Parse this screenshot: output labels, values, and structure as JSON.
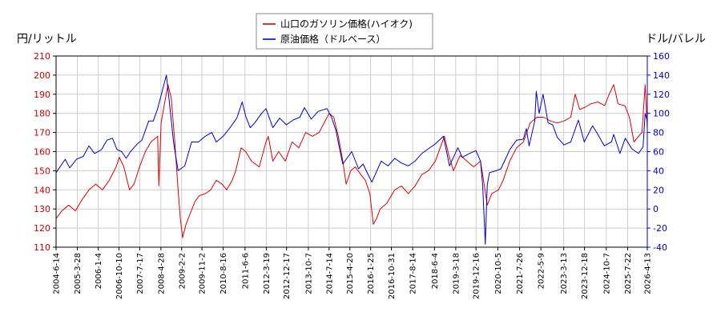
{
  "chart_data": {
    "type": "line",
    "title": "",
    "left_axis_label": "円/リットル",
    "right_axis_label": "ドル/バレル",
    "left_ylim": [
      110,
      210
    ],
    "left_yticks": [
      110,
      120,
      130,
      140,
      150,
      160,
      170,
      180,
      190,
      200,
      210
    ],
    "right_ylim": [
      -40,
      160
    ],
    "right_yticks": [
      -40,
      -20,
      0,
      20,
      40,
      60,
      80,
      100,
      120,
      140,
      160
    ],
    "x_range": [
      "2004-06-14",
      "2026-04-13"
    ],
    "x_ticks": [
      "2004-6-14",
      "2005-3-28",
      "2006-1-4",
      "2006-10-10",
      "2007-7-17",
      "2008-4-28",
      "2009-2-2",
      "2009-11-2",
      "2010-8-16",
      "2011-6-6",
      "2012-3-19",
      "2012-12-17",
      "2013-10-7",
      "2014-7-14",
      "2015-4-20",
      "2016-1-25",
      "2016-10-31",
      "2017-8-14",
      "2018-6-4",
      "2019-3-18",
      "2019-12-16",
      "2020-10-5",
      "2021-7-26",
      "2022-5-9",
      "2023-3-13",
      "2023-12-18",
      "2024-10-7",
      "2025-7-22",
      "2026-4-13"
    ],
    "grid": true,
    "legend_position": "top-center",
    "series": [
      {
        "name": "山口のガソリン価格(ハイオク)",
        "axis": "left",
        "color": "#dd0000",
        "points": [
          [
            "2004-06-14",
            125
          ],
          [
            "2004-09-01",
            129
          ],
          [
            "2004-12-01",
            132
          ],
          [
            "2005-03-01",
            129
          ],
          [
            "2005-06-01",
            135
          ],
          [
            "2005-09-01",
            140
          ],
          [
            "2005-12-01",
            143
          ],
          [
            "2006-03-01",
            140
          ],
          [
            "2006-06-01",
            145
          ],
          [
            "2006-09-01",
            152
          ],
          [
            "2006-10-15",
            157
          ],
          [
            "2006-12-15",
            152
          ],
          [
            "2007-03-01",
            140
          ],
          [
            "2007-05-01",
            143
          ],
          [
            "2007-07-15",
            152
          ],
          [
            "2007-10-01",
            160
          ],
          [
            "2007-12-15",
            165
          ],
          [
            "2008-03-15",
            168
          ],
          [
            "2008-03-31",
            142
          ],
          [
            "2008-04-30",
            175
          ],
          [
            "2008-06-15",
            185
          ],
          [
            "2008-08-01",
            195
          ],
          [
            "2008-09-15",
            188
          ],
          [
            "2008-11-01",
            165
          ],
          [
            "2008-12-15",
            140
          ],
          [
            "2009-01-15",
            125
          ],
          [
            "2009-02-15",
            115
          ],
          [
            "2009-04-01",
            122
          ],
          [
            "2009-06-01",
            128
          ],
          [
            "2009-08-01",
            134
          ],
          [
            "2009-10-01",
            137
          ],
          [
            "2009-12-15",
            138
          ],
          [
            "2010-03-01",
            140
          ],
          [
            "2010-05-15",
            145
          ],
          [
            "2010-08-01",
            143
          ],
          [
            "2010-10-01",
            140
          ],
          [
            "2010-12-15",
            145
          ],
          [
            "2011-02-01",
            150
          ],
          [
            "2011-04-15",
            162
          ],
          [
            "2011-06-15",
            160
          ],
          [
            "2011-09-01",
            155
          ],
          [
            "2011-12-15",
            152
          ],
          [
            "2012-03-15",
            165
          ],
          [
            "2012-04-15",
            168
          ],
          [
            "2012-06-15",
            155
          ],
          [
            "2012-09-01",
            160
          ],
          [
            "2012-12-01",
            155
          ],
          [
            "2013-03-01",
            165
          ],
          [
            "2013-06-01",
            162
          ],
          [
            "2013-09-01",
            170
          ],
          [
            "2013-12-01",
            168
          ],
          [
            "2014-03-01",
            170
          ],
          [
            "2014-07-15",
            180
          ],
          [
            "2014-09-15",
            178
          ],
          [
            "2014-11-15",
            168
          ],
          [
            "2015-01-15",
            155
          ],
          [
            "2015-03-01",
            143
          ],
          [
            "2015-05-01",
            150
          ],
          [
            "2015-07-01",
            152
          ],
          [
            "2015-09-15",
            148
          ],
          [
            "2015-11-15",
            145
          ],
          [
            "2016-01-15",
            138
          ],
          [
            "2016-03-01",
            122
          ],
          [
            "2016-04-15",
            125
          ],
          [
            "2016-06-01",
            130
          ],
          [
            "2016-09-01",
            133
          ],
          [
            "2016-12-15",
            140
          ],
          [
            "2017-03-15",
            142
          ],
          [
            "2017-06-15",
            138
          ],
          [
            "2017-09-15",
            142
          ],
          [
            "2017-12-15",
            148
          ],
          [
            "2018-03-15",
            150
          ],
          [
            "2018-06-15",
            155
          ],
          [
            "2018-10-15",
            168
          ],
          [
            "2018-12-15",
            158
          ],
          [
            "2019-02-15",
            150
          ],
          [
            "2019-05-15",
            158
          ],
          [
            "2019-08-15",
            155
          ],
          [
            "2019-11-15",
            152
          ],
          [
            "2020-02-15",
            155
          ],
          [
            "2020-04-15",
            140
          ],
          [
            "2020-05-15",
            132
          ],
          [
            "2020-07-15",
            138
          ],
          [
            "2020-10-15",
            140
          ],
          [
            "2020-12-15",
            145
          ],
          [
            "2021-03-15",
            155
          ],
          [
            "2021-06-15",
            162
          ],
          [
            "2021-09-15",
            165
          ],
          [
            "2021-12-15",
            175
          ],
          [
            "2022-03-15",
            178
          ],
          [
            "2022-06-15",
            178
          ],
          [
            "2022-09-15",
            176
          ],
          [
            "2022-12-15",
            175
          ],
          [
            "2023-03-15",
            176
          ],
          [
            "2023-06-15",
            178
          ],
          [
            "2023-08-15",
            190
          ],
          [
            "2023-10-15",
            182
          ],
          [
            "2023-12-15",
            183
          ],
          [
            "2024-03-15",
            185
          ],
          [
            "2024-06-15",
            186
          ],
          [
            "2024-09-15",
            184
          ],
          [
            "2024-11-15",
            190
          ],
          [
            "2025-01-15",
            195
          ],
          [
            "2025-03-15",
            185
          ],
          [
            "2025-06-15",
            184
          ],
          [
            "2025-08-15",
            178
          ],
          [
            "2025-10-15",
            165
          ],
          [
            "2025-12-15",
            168
          ],
          [
            "2026-02-01",
            170
          ],
          [
            "2026-03-15",
            195
          ],
          [
            "2026-04-13",
            172
          ]
        ]
      },
      {
        "name": "原油価格（ドルベース）",
        "axis": "right",
        "color": "#0000cc",
        "points": [
          [
            "2004-06-14",
            38
          ],
          [
            "2004-10-15",
            52
          ],
          [
            "2004-12-15",
            43
          ],
          [
            "2005-03-15",
            52
          ],
          [
            "2005-06-15",
            55
          ],
          [
            "2005-08-31",
            66
          ],
          [
            "2005-11-15",
            58
          ],
          [
            "2006-02-15",
            62
          ],
          [
            "2006-05-01",
            72
          ],
          [
            "2006-07-15",
            74
          ],
          [
            "2006-09-15",
            62
          ],
          [
            "2006-11-15",
            60
          ],
          [
            "2007-01-15",
            53
          ],
          [
            "2007-03-15",
            60
          ],
          [
            "2007-06-15",
            68
          ],
          [
            "2007-08-15",
            72
          ],
          [
            "2007-11-15",
            92
          ],
          [
            "2008-01-15",
            92
          ],
          [
            "2008-03-15",
            105
          ],
          [
            "2008-07-11",
            140
          ],
          [
            "2008-08-15",
            115
          ],
          [
            "2008-10-15",
            70
          ],
          [
            "2008-12-15",
            40
          ],
          [
            "2009-03-15",
            45
          ],
          [
            "2009-06-15",
            70
          ],
          [
            "2009-09-15",
            70
          ],
          [
            "2009-12-15",
            76
          ],
          [
            "2010-03-15",
            80
          ],
          [
            "2010-05-15",
            70
          ],
          [
            "2010-08-15",
            76
          ],
          [
            "2010-11-15",
            85
          ],
          [
            "2011-02-15",
            95
          ],
          [
            "2011-04-29",
            112
          ],
          [
            "2011-06-15",
            97
          ],
          [
            "2011-08-15",
            85
          ],
          [
            "2011-10-15",
            90
          ],
          [
            "2012-01-15",
            100
          ],
          [
            "2012-03-15",
            105
          ],
          [
            "2012-06-15",
            85
          ],
          [
            "2012-09-15",
            95
          ],
          [
            "2012-12-15",
            88
          ],
          [
            "2013-03-15",
            93
          ],
          [
            "2013-06-15",
            96
          ],
          [
            "2013-08-15",
            106
          ],
          [
            "2013-11-15",
            94
          ],
          [
            "2014-02-15",
            102
          ],
          [
            "2014-06-15",
            105
          ],
          [
            "2014-08-15",
            96
          ],
          [
            "2014-10-15",
            82
          ],
          [
            "2014-12-15",
            58
          ],
          [
            "2015-01-15",
            47
          ],
          [
            "2015-05-15",
            60
          ],
          [
            "2015-08-15",
            42
          ],
          [
            "2015-10-15",
            47
          ],
          [
            "2015-12-15",
            37
          ],
          [
            "2016-02-11",
            28
          ],
          [
            "2016-06-15",
            50
          ],
          [
            "2016-09-15",
            45
          ],
          [
            "2016-12-15",
            53
          ],
          [
            "2017-03-15",
            48
          ],
          [
            "2017-06-15",
            45
          ],
          [
            "2017-09-15",
            50
          ],
          [
            "2017-12-15",
            58
          ],
          [
            "2018-03-15",
            63
          ],
          [
            "2018-06-15",
            68
          ],
          [
            "2018-10-03",
            76
          ],
          [
            "2018-12-24",
            45
          ],
          [
            "2019-04-15",
            64
          ],
          [
            "2019-06-15",
            54
          ],
          [
            "2019-09-15",
            58
          ],
          [
            "2019-12-15",
            61
          ],
          [
            "2020-02-15",
            50
          ],
          [
            "2020-03-15",
            25
          ],
          [
            "2020-04-20",
            -37
          ],
          [
            "2020-05-15",
            25
          ],
          [
            "2020-06-15",
            38
          ],
          [
            "2020-09-15",
            40
          ],
          [
            "2020-11-15",
            42
          ],
          [
            "2021-01-15",
            52
          ],
          [
            "2021-03-15",
            62
          ],
          [
            "2021-06-15",
            72
          ],
          [
            "2021-09-15",
            73
          ],
          [
            "2021-10-25",
            84
          ],
          [
            "2021-12-01",
            66
          ],
          [
            "2022-02-15",
            92
          ],
          [
            "2022-03-08",
            123
          ],
          [
            "2022-04-15",
            100
          ],
          [
            "2022-06-08",
            120
          ],
          [
            "2022-08-15",
            90
          ],
          [
            "2022-10-15",
            88
          ],
          [
            "2022-12-15",
            75
          ],
          [
            "2023-03-15",
            67
          ],
          [
            "2023-06-15",
            70
          ],
          [
            "2023-09-27",
            93
          ],
          [
            "2023-12-15",
            70
          ],
          [
            "2024-04-05",
            87
          ],
          [
            "2024-06-15",
            78
          ],
          [
            "2024-09-10",
            66
          ],
          [
            "2024-12-15",
            70
          ],
          [
            "2025-01-15",
            78
          ],
          [
            "2025-04-08",
            58
          ],
          [
            "2025-06-20",
            74
          ],
          [
            "2025-09-15",
            63
          ],
          [
            "2025-12-15",
            58
          ],
          [
            "2026-02-15",
            65
          ],
          [
            "2026-03-15",
            100
          ],
          [
            "2026-04-13",
            92
          ]
        ]
      }
    ]
  }
}
